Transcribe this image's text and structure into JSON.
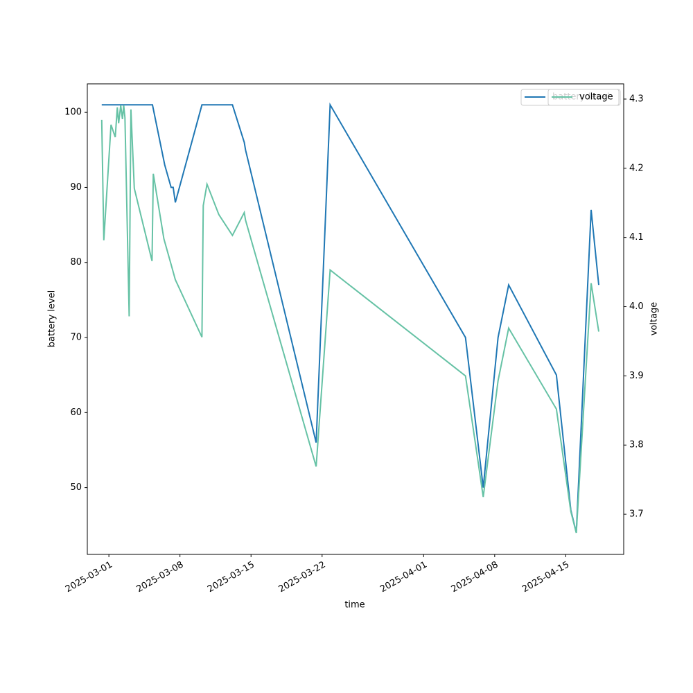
{
  "chart_data": {
    "type": "line",
    "xlabel": "time",
    "ylabel": "battery level",
    "y2label": "voltage",
    "xlim": [
      "2025-02-26T21:00",
      "2025-04-20T17:00"
    ],
    "xticks": [
      "2025-03-01",
      "2025-03-08",
      "2025-03-15",
      "2025-03-22",
      "2025-04-01",
      "2025-04-08",
      "2025-04-15"
    ],
    "ylim": [
      41.1,
      103.8
    ],
    "yticks": [
      50,
      60,
      70,
      80,
      90,
      100
    ],
    "y2lim": [
      3.642,
      4.322
    ],
    "y2ticks": [
      3.7,
      3.8,
      3.9,
      {
        "value": 4,
        "label": "4.0"
      },
      4.1,
      4.2,
      4.3
    ],
    "legend": "upper right",
    "series": [
      {
        "name": "battery level",
        "color": "#1f77b4",
        "x": [
          "2025-02-28T07:00",
          "2025-03-05T07:00",
          "2025-03-06T12:00",
          "2025-03-07T03:00",
          "2025-03-07T08:00",
          "2025-03-07T13:00",
          "2025-03-10T04:00",
          "2025-03-13T04:00",
          "2025-03-14T08:00",
          "2025-03-14T11:00",
          "2025-03-21T10:00",
          "2025-03-22T19:00",
          "2025-04-05T03:00",
          "2025-04-06T21:00",
          "2025-04-08T08:00",
          "2025-04-09T09:00",
          "2025-04-14T02:00",
          "2025-04-15T12:00",
          "2025-04-16T01:00",
          "2025-04-17T12:00",
          "2025-04-18T06:00"
        ],
        "values": [
          101,
          101,
          93,
          90,
          90,
          88,
          101,
          101,
          96,
          95,
          56,
          101,
          70,
          50,
          70,
          77,
          65,
          47,
          44,
          87,
          77
        ]
      },
      {
        "name": "voltage",
        "color": "#66c2a5",
        "axis": "y2",
        "x": [
          "2025-02-28T07:00",
          "2025-02-28T12:00",
          "2025-03-01T05:00",
          "2025-03-01T15:00",
          "2025-03-01T20:00",
          "2025-03-01T23:00",
          "2025-03-02T04:00",
          "2025-03-02T08:00",
          "2025-03-02T11:00",
          "2025-03-02T14:00",
          "2025-03-03T00:00",
          "2025-03-03T04:00",
          "2025-03-03T12:00",
          "2025-03-05T06:00",
          "2025-03-05T09:00",
          "2025-03-06T10:00",
          "2025-03-07T03:00",
          "2025-03-07T13:00",
          "2025-03-10T04:00",
          "2025-03-10T07:00",
          "2025-03-10T16:00",
          "2025-03-11T20:00",
          "2025-03-13T04:00",
          "2025-03-14T08:00",
          "2025-03-14T11:00",
          "2025-03-21T10:00",
          "2025-03-22T19:00",
          "2025-04-05T03:00",
          "2025-04-06T21:00",
          "2025-04-08T08:00",
          "2025-04-09T09:00",
          "2025-04-14T02:00",
          "2025-04-15T12:00",
          "2025-04-16T01:00",
          "2025-04-17T12:00",
          "2025-04-18T06:00"
        ],
        "values": [
          4.27,
          4.096,
          4.263,
          4.245,
          4.288,
          4.265,
          4.291,
          4.271,
          4.291,
          4.273,
          3.986,
          4.285,
          4.171,
          4.066,
          4.192,
          4.098,
          4.061,
          4.039,
          3.956,
          4.146,
          4.177,
          4.133,
          4.103,
          4.136,
          4.125,
          3.769,
          4.053,
          3.9,
          3.725,
          3.893,
          3.969,
          3.852,
          3.704,
          3.673,
          4.034,
          3.964
        ]
      }
    ]
  }
}
